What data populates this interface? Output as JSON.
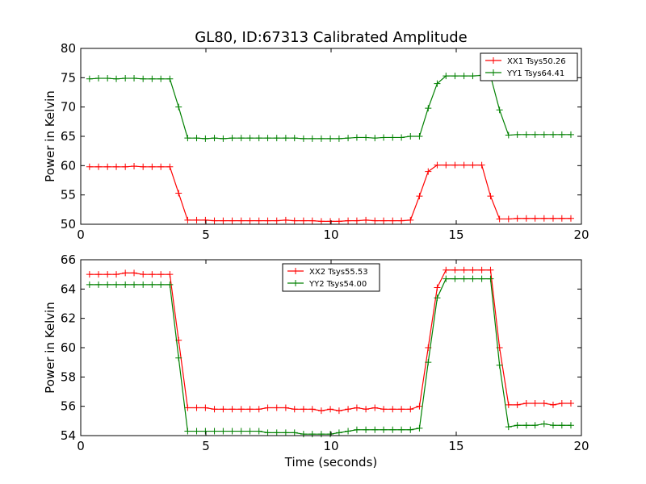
{
  "chart_data": [
    {
      "type": "line",
      "title": "GL80, ID:67313 Calibrated Amplitude",
      "xlabel": "",
      "ylabel": "Power in Kelvin",
      "xlim": [
        0,
        20
      ],
      "ylim": [
        50,
        80
      ],
      "xticks": [
        0,
        5,
        10,
        15,
        20
      ],
      "yticks": [
        50,
        55,
        60,
        65,
        70,
        75,
        80
      ],
      "legend_position": "top-right",
      "series": [
        {
          "name": "XX1 Tsys50.26",
          "color": "#ff0000",
          "marker": "plus",
          "x": [
            0.35,
            0.71,
            1.07,
            1.42,
            1.78,
            2.13,
            2.49,
            2.85,
            3.2,
            3.56,
            3.91,
            4.27,
            4.63,
            4.98,
            5.34,
            5.69,
            6.05,
            6.41,
            6.76,
            7.12,
            7.47,
            7.83,
            8.19,
            8.54,
            8.9,
            9.25,
            9.61,
            9.97,
            10.32,
            10.68,
            11.03,
            11.39,
            11.75,
            12.1,
            12.46,
            12.81,
            13.17,
            13.53,
            13.88,
            14.24,
            14.59,
            14.95,
            15.31,
            15.66,
            16.02,
            16.37,
            16.73,
            17.09,
            17.44,
            17.8,
            18.15,
            18.51,
            18.87,
            19.22,
            19.58
          ],
          "y": [
            59.8,
            59.8,
            59.8,
            59.8,
            59.8,
            59.9,
            59.8,
            59.8,
            59.8,
            59.8,
            55.3,
            50.7,
            50.7,
            50.7,
            50.6,
            50.6,
            50.6,
            50.6,
            50.6,
            50.6,
            50.6,
            50.6,
            50.7,
            50.6,
            50.6,
            50.6,
            50.5,
            50.5,
            50.5,
            50.6,
            50.6,
            50.7,
            50.6,
            50.6,
            50.6,
            50.6,
            50.7,
            54.8,
            59.0,
            60.1,
            60.1,
            60.1,
            60.1,
            60.1,
            60.1,
            54.8,
            50.9,
            50.9,
            51.0,
            51.0,
            51.0,
            51.0,
            51.0,
            51.0,
            51.0
          ]
        },
        {
          "name": "YY1 Tsys64.41",
          "color": "#008000",
          "marker": "plus",
          "x": [
            0.35,
            0.71,
            1.07,
            1.42,
            1.78,
            2.13,
            2.49,
            2.85,
            3.2,
            3.56,
            3.91,
            4.27,
            4.63,
            4.98,
            5.34,
            5.69,
            6.05,
            6.41,
            6.76,
            7.12,
            7.47,
            7.83,
            8.19,
            8.54,
            8.9,
            9.25,
            9.61,
            9.97,
            10.32,
            10.68,
            11.03,
            11.39,
            11.75,
            12.1,
            12.46,
            12.81,
            13.17,
            13.53,
            13.88,
            14.24,
            14.59,
            14.95,
            15.31,
            15.66,
            16.02,
            16.37,
            16.73,
            17.09,
            17.44,
            17.8,
            18.15,
            18.51,
            18.87,
            19.22,
            19.58
          ],
          "y": [
            74.8,
            74.9,
            74.9,
            74.8,
            74.9,
            74.9,
            74.8,
            74.8,
            74.8,
            74.8,
            70.0,
            64.7,
            64.7,
            64.6,
            64.7,
            64.6,
            64.7,
            64.7,
            64.7,
            64.7,
            64.7,
            64.7,
            64.7,
            64.7,
            64.6,
            64.6,
            64.6,
            64.6,
            64.6,
            64.7,
            64.8,
            64.8,
            64.7,
            64.8,
            64.8,
            64.8,
            65.0,
            65.0,
            69.8,
            74.0,
            75.3,
            75.3,
            75.3,
            75.3,
            75.4,
            75.3,
            69.5,
            65.2,
            65.3,
            65.3,
            65.3,
            65.3,
            65.3,
            65.3,
            65.3
          ]
        }
      ]
    },
    {
      "type": "line",
      "title": "",
      "xlabel": "Time (seconds)",
      "ylabel": "Power in Kelvin",
      "xlim": [
        0,
        20
      ],
      "ylim": [
        54,
        66
      ],
      "xticks": [
        0,
        5,
        10,
        15,
        20
      ],
      "yticks": [
        54,
        56,
        58,
        60,
        62,
        64,
        66
      ],
      "legend_position": "top-center",
      "series": [
        {
          "name": "XX2 Tsys55.53",
          "color": "#ff0000",
          "marker": "plus",
          "x": [
            0.35,
            0.71,
            1.07,
            1.42,
            1.78,
            2.13,
            2.49,
            2.85,
            3.2,
            3.56,
            3.91,
            4.27,
            4.63,
            4.98,
            5.34,
            5.69,
            6.05,
            6.41,
            6.76,
            7.12,
            7.47,
            7.83,
            8.19,
            8.54,
            8.9,
            9.25,
            9.61,
            9.97,
            10.32,
            10.68,
            11.03,
            11.39,
            11.75,
            12.1,
            12.46,
            12.81,
            13.17,
            13.53,
            13.88,
            14.24,
            14.59,
            14.95,
            15.31,
            15.66,
            16.02,
            16.37,
            16.73,
            17.09,
            17.44,
            17.8,
            18.15,
            18.51,
            18.87,
            19.22,
            19.58
          ],
          "y": [
            65.0,
            65.0,
            65.0,
            65.0,
            65.1,
            65.1,
            65.0,
            65.0,
            65.0,
            65.0,
            60.5,
            55.9,
            55.9,
            55.9,
            55.8,
            55.8,
            55.8,
            55.8,
            55.8,
            55.8,
            55.9,
            55.9,
            55.9,
            55.8,
            55.8,
            55.8,
            55.7,
            55.8,
            55.7,
            55.8,
            55.9,
            55.8,
            55.9,
            55.8,
            55.8,
            55.8,
            55.8,
            56.0,
            60.0,
            64.1,
            65.3,
            65.3,
            65.3,
            65.3,
            65.3,
            65.3,
            60.0,
            56.1,
            56.1,
            56.2,
            56.2,
            56.2,
            56.1,
            56.2,
            56.2
          ]
        },
        {
          "name": "YY2 Tsys54.00",
          "color": "#008000",
          "marker": "plus",
          "x": [
            0.35,
            0.71,
            1.07,
            1.42,
            1.78,
            2.13,
            2.49,
            2.85,
            3.2,
            3.56,
            3.91,
            4.27,
            4.63,
            4.98,
            5.34,
            5.69,
            6.05,
            6.41,
            6.76,
            7.12,
            7.47,
            7.83,
            8.19,
            8.54,
            8.9,
            9.25,
            9.61,
            9.97,
            10.32,
            10.68,
            11.03,
            11.39,
            11.75,
            12.1,
            12.46,
            12.81,
            13.17,
            13.53,
            13.88,
            14.24,
            14.59,
            14.95,
            15.31,
            15.66,
            16.02,
            16.37,
            16.73,
            17.09,
            17.44,
            17.8,
            18.15,
            18.51,
            18.87,
            19.22,
            19.58
          ],
          "y": [
            64.3,
            64.3,
            64.3,
            64.3,
            64.3,
            64.3,
            64.3,
            64.3,
            64.3,
            64.3,
            59.3,
            54.3,
            54.3,
            54.3,
            54.3,
            54.3,
            54.3,
            54.3,
            54.3,
            54.3,
            54.2,
            54.2,
            54.2,
            54.2,
            54.1,
            54.1,
            54.1,
            54.1,
            54.2,
            54.3,
            54.4,
            54.4,
            54.4,
            54.4,
            54.4,
            54.4,
            54.4,
            54.5,
            59.0,
            63.4,
            64.7,
            64.7,
            64.7,
            64.7,
            64.7,
            64.7,
            58.8,
            54.6,
            54.7,
            54.7,
            54.7,
            54.8,
            54.7,
            54.7,
            54.7
          ]
        }
      ]
    }
  ]
}
